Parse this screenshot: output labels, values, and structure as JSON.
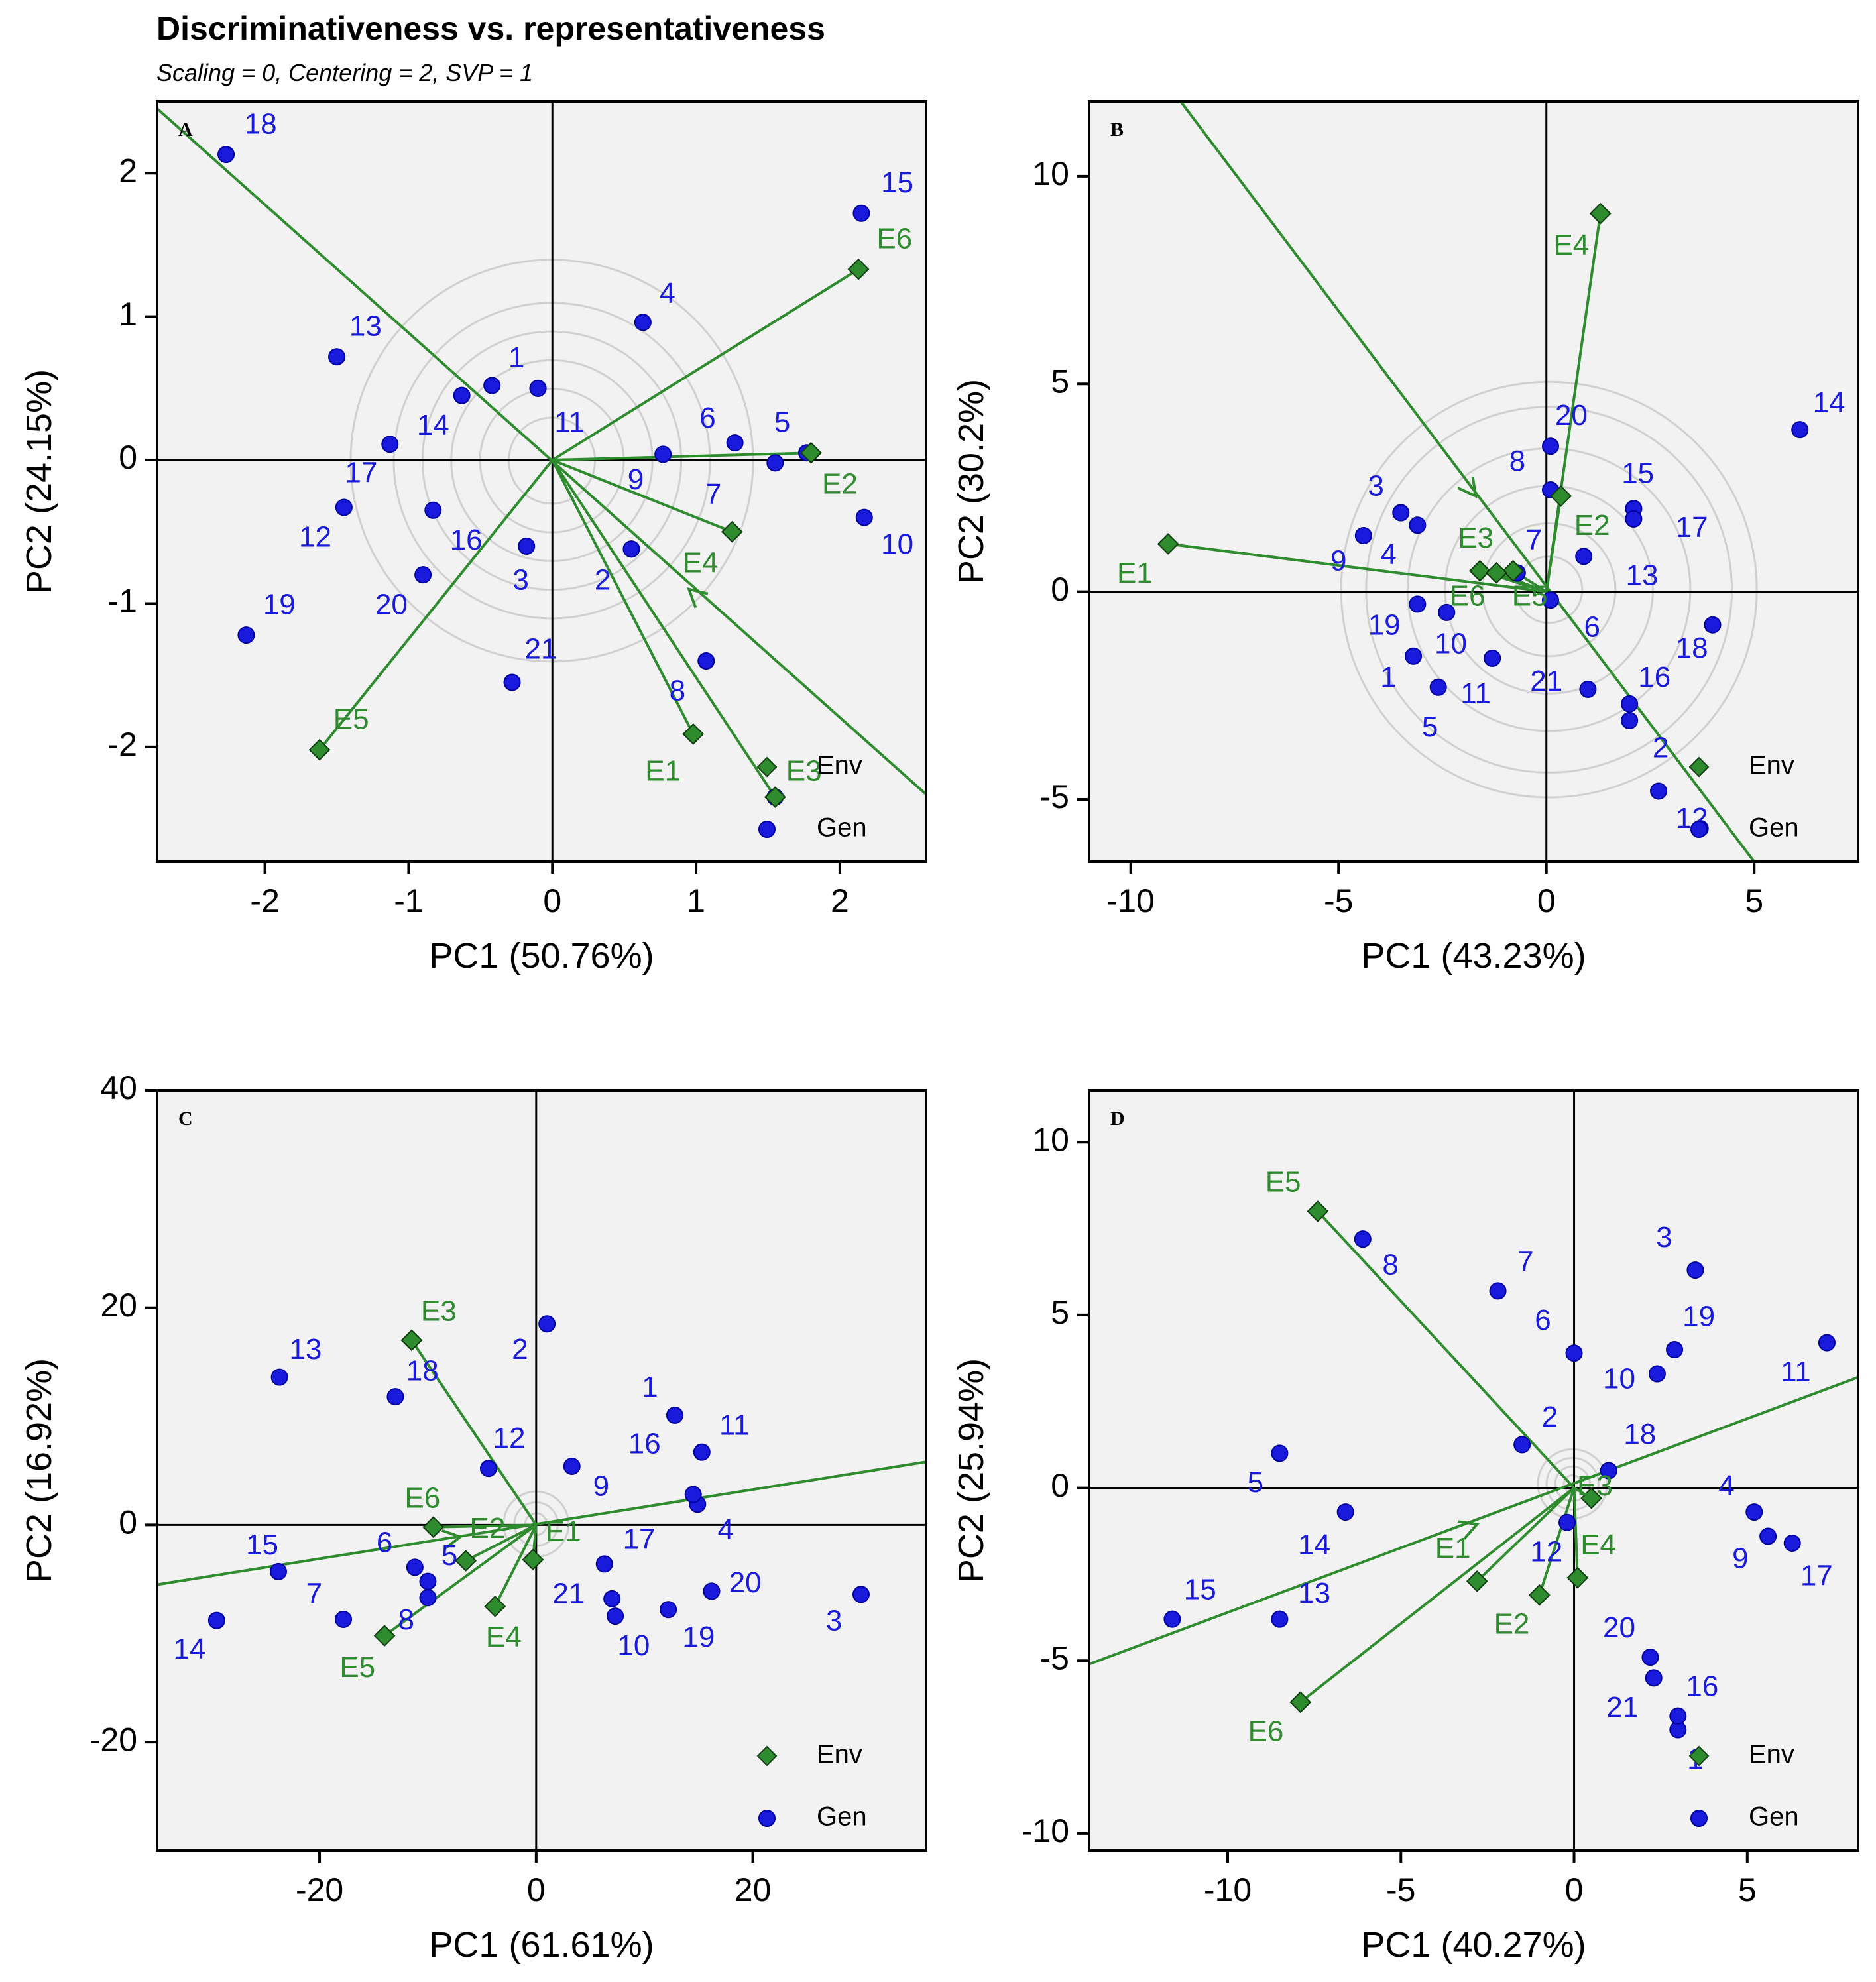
{
  "title": "Discriminativeness vs. representativeness",
  "subtitle": "Scaling = 0, Centering = 2, SVP = 1",
  "colors": {
    "env": "#2e8b2e",
    "env_fill": "#2e8b2e",
    "gen": "#1a1adc",
    "panel_bg": "#f2f2f2",
    "circle": "#d0d0d0"
  },
  "legend": {
    "env": "Env",
    "gen": "Gen"
  },
  "chart_data": [
    {
      "type": "scatter",
      "panel": "A",
      "xlabel": "PC1 (50.76%)",
      "ylabel": "PC2 (24.15%)",
      "xlim": [
        -2.75,
        2.6
      ],
      "ylim": [
        -2.8,
        2.5
      ],
      "xticks": [
        -2,
        -1,
        0,
        1,
        2
      ],
      "yticks": [
        -2,
        -1,
        0,
        1,
        2
      ],
      "circle_radii": [
        0.3,
        0.5,
        0.7,
        0.9,
        1.1,
        1.4
      ],
      "avec": {
        "x1": -2.75,
        "y1": 2.45,
        "x2": 2.6,
        "y2": -2.33
      },
      "avec_arrow": {
        "x": 0.95,
        "y": -0.9
      },
      "genotypes": [
        {
          "label": "1",
          "x": -0.1,
          "y": 0.5,
          "lx": -0.25,
          "ly": 0.7
        },
        {
          "label": "2",
          "x": 0.55,
          "y": -0.62,
          "lx": 0.35,
          "ly": -0.85
        },
        {
          "label": "3",
          "x": -0.18,
          "y": -0.6,
          "lx": -0.22,
          "ly": -0.85
        },
        {
          "label": "4",
          "x": 0.63,
          "y": 0.96,
          "lx": 0.8,
          "ly": 1.15
        },
        {
          "label": "5",
          "x": 1.55,
          "y": -0.02,
          "lx": 1.6,
          "ly": 0.25
        },
        {
          "label": "6",
          "x": 1.27,
          "y": 0.12,
          "lx": 1.08,
          "ly": 0.28
        },
        {
          "label": "7",
          "x": 0.77,
          "y": 0.04,
          "lx": 1.12,
          "ly": -0.25
        },
        {
          "label": "8",
          "x": 1.07,
          "y": -1.4,
          "lx": 0.87,
          "ly": -1.62
        },
        {
          "label": "9",
          "x": 0.55,
          "y": -0.62,
          "lx": 0.58,
          "ly": -0.15
        },
        {
          "label": "10",
          "x": 2.17,
          "y": -0.4,
          "lx": 2.4,
          "ly": -0.6
        },
        {
          "label": "11",
          "x": -0.1,
          "y": 0.5,
          "lx": 0.12,
          "ly": 0.25
        },
        {
          "label": "12",
          "x": -1.45,
          "y": -0.33,
          "lx": -1.65,
          "ly": -0.55
        },
        {
          "label": "13",
          "x": -1.5,
          "y": 0.72,
          "lx": -1.3,
          "ly": 0.92
        },
        {
          "label": "14",
          "x": -1.13,
          "y": 0.11,
          "lx": -0.83,
          "ly": 0.23
        },
        {
          "label": "15",
          "x": 2.15,
          "y": 1.72,
          "lx": 2.4,
          "ly": 1.92
        },
        {
          "label": "16",
          "x": -0.83,
          "y": -0.35,
          "lx": -0.6,
          "ly": -0.57
        },
        {
          "label": "17",
          "x": -0.63,
          "y": 0.45,
          "lx": -1.33,
          "ly": -0.1
        },
        {
          "label": "18",
          "x": -2.27,
          "y": 2.13,
          "lx": -2.03,
          "ly": 2.33
        },
        {
          "label": "19",
          "x": -2.13,
          "y": -1.22,
          "lx": -1.9,
          "ly": -1.02
        },
        {
          "label": "20",
          "x": -0.9,
          "y": -0.8,
          "lx": -1.12,
          "ly": -1.02
        },
        {
          "label": "21",
          "x": -0.28,
          "y": -1.55,
          "lx": -0.08,
          "ly": -1.33
        },
        {
          "label": "",
          "x": -0.42,
          "y": 0.52
        },
        {
          "label": "",
          "x": 1.55,
          "y": -2.35
        },
        {
          "label": "",
          "x": 1.77,
          "y": 0.05
        }
      ],
      "environments": [
        {
          "label": "E1",
          "x": 0.98,
          "y": -1.91,
          "lx": 0.77,
          "ly": -2.18
        },
        {
          "label": "E2",
          "x": 1.8,
          "y": 0.05,
          "lx": 2.0,
          "ly": -0.18
        },
        {
          "label": "E3",
          "x": 1.55,
          "y": -2.35,
          "lx": 1.75,
          "ly": -2.18
        },
        {
          "label": "E4",
          "x": 1.25,
          "y": -0.5,
          "lx": 1.03,
          "ly": -0.73
        },
        {
          "label": "E5",
          "x": -1.62,
          "y": -2.02,
          "lx": -1.4,
          "ly": -1.82
        },
        {
          "label": "E6",
          "x": 2.13,
          "y": 1.33,
          "lx": 2.38,
          "ly": 1.53
        }
      ]
    },
    {
      "type": "scatter",
      "panel": "B",
      "xlabel": "PC1 (43.23%)",
      "ylabel": "PC2 (30.2%)",
      "xlim": [
        -11,
        7.5
      ],
      "ylim": [
        -6.5,
        11.8
      ],
      "xticks": [
        -10,
        -5,
        0,
        5
      ],
      "yticks": [
        -5,
        0,
        5,
        10
      ],
      "circle_radii": [
        0.8,
        1.6,
        2.5,
        3.4,
        4.4,
        5.0
      ],
      "avec": {
        "x1": -8.8,
        "y1": 11.8,
        "x2": 5.0,
        "y2": -6.5
      },
      "avec_arrow": {
        "x": -1.7,
        "y": 2.3
      },
      "genotypes": [
        {
          "label": "1",
          "x": -3.2,
          "y": -1.55,
          "lx": -3.8,
          "ly": -2.1
        },
        {
          "label": "2",
          "x": 2.7,
          "y": -4.8,
          "lx": 2.75,
          "ly": -3.8
        },
        {
          "label": "3",
          "x": -3.5,
          "y": 1.9,
          "lx": -4.1,
          "ly": 2.5
        },
        {
          "label": "4",
          "x": -3.1,
          "y": 1.6,
          "lx": -3.8,
          "ly": 0.85
        },
        {
          "label": "5",
          "x": -2.6,
          "y": -2.3,
          "lx": -2.8,
          "ly": -3.3
        },
        {
          "label": "6",
          "x": 0.1,
          "y": -0.2,
          "lx": 1.1,
          "ly": -0.9
        },
        {
          "label": "7",
          "x": -0.7,
          "y": 0.45,
          "lx": -0.3,
          "ly": 1.2
        },
        {
          "label": "8",
          "x": 0.1,
          "y": 2.45,
          "lx": -0.7,
          "ly": 3.1
        },
        {
          "label": "9",
          "x": -4.4,
          "y": 1.35,
          "lx": -5.0,
          "ly": 0.7
        },
        {
          "label": "10",
          "x": -1.3,
          "y": -1.6,
          "lx": -2.3,
          "ly": -1.3
        },
        {
          "label": "11",
          "x": -2.4,
          "y": -0.5,
          "lx": -1.7,
          "ly": -2.5
        },
        {
          "label": "12",
          "x": 3.7,
          "y": -5.7,
          "lx": 3.5,
          "ly": -5.5
        },
        {
          "label": "13",
          "x": 0.9,
          "y": 0.85,
          "lx": 2.3,
          "ly": 0.35
        },
        {
          "label": "14",
          "x": 6.1,
          "y": 3.9,
          "lx": 6.8,
          "ly": 4.5
        },
        {
          "label": "15",
          "x": 2.1,
          "y": 2.0,
          "lx": 2.2,
          "ly": 2.8
        },
        {
          "label": "16",
          "x": 2.0,
          "y": -2.7,
          "lx": 2.6,
          "ly": -2.1
        },
        {
          "label": "17",
          "x": 2.1,
          "y": 1.75,
          "lx": 3.5,
          "ly": 1.5
        },
        {
          "label": "18",
          "x": 4.0,
          "y": -0.8,
          "lx": 3.5,
          "ly": -1.4
        },
        {
          "label": "19",
          "x": -3.1,
          "y": -0.3,
          "lx": -3.9,
          "ly": -0.85
        },
        {
          "label": "20",
          "x": 0.1,
          "y": 3.5,
          "lx": 0.6,
          "ly": 4.2
        },
        {
          "label": "21",
          "x": 1.0,
          "y": -2.35,
          "lx": 0.0,
          "ly": -2.2
        },
        {
          "label": "",
          "x": 2.0,
          "y": -3.1
        }
      ],
      "environments": [
        {
          "label": "E1",
          "x": -9.1,
          "y": 1.15,
          "lx": -9.9,
          "ly": 0.4
        },
        {
          "label": "E2",
          "x": 0.35,
          "y": 2.3,
          "lx": 1.1,
          "ly": 1.55
        },
        {
          "label": "E3",
          "x": -1.6,
          "y": 0.5,
          "lx": -1.7,
          "ly": 1.25
        },
        {
          "label": "E4",
          "x": 1.3,
          "y": 9.1,
          "lx": 0.6,
          "ly": 8.3
        },
        {
          "label": "E5",
          "x": -0.8,
          "y": 0.5,
          "lx": -0.4,
          "ly": -0.15
        },
        {
          "label": "E6",
          "x": -1.2,
          "y": 0.45,
          "lx": -1.9,
          "ly": -0.15
        }
      ]
    },
    {
      "type": "scatter",
      "panel": "C",
      "xlabel": "PC1 (61.61%)",
      "ylabel": "PC2 (16.92%)",
      "xlim": [
        -35,
        36
      ],
      "ylim": [
        -30,
        40
      ],
      "xticks": [
        -20,
        0,
        20
      ],
      "yticks": [
        -20,
        0,
        20,
        40
      ],
      "circle_radii": [
        1.0,
        2.0,
        3.0
      ],
      "avec": {
        "x1": -35,
        "y1": -5.5,
        "x2": 36,
        "y2": 5.8
      },
      "avec_arrow": {
        "x": -7,
        "y": -1.1
      },
      "genotypes": [
        {
          "label": "1",
          "x": 12.8,
          "y": 10.1,
          "lx": 10.5,
          "ly": 12.5
        },
        {
          "label": "2",
          "x": 1.0,
          "y": 18.5,
          "lx": -1.5,
          "ly": 16.0
        },
        {
          "label": "3",
          "x": 30.0,
          "y": -6.4,
          "lx": 27.5,
          "ly": -9.0
        },
        {
          "label": "4",
          "x": 14.9,
          "y": 1.9,
          "lx": 17.5,
          "ly": -0.6
        },
        {
          "label": "5",
          "x": -10.0,
          "y": -5.2,
          "lx": -8.0,
          "ly": -3.0
        },
        {
          "label": "6",
          "x": -11.2,
          "y": -3.9,
          "lx": -14.0,
          "ly": -1.8
        },
        {
          "label": "7",
          "x": -17.8,
          "y": -8.7,
          "lx": -20.5,
          "ly": -6.5
        },
        {
          "label": "8",
          "x": -10.0,
          "y": -6.7,
          "lx": -12.0,
          "ly": -8.9
        },
        {
          "label": "9",
          "x": 3.3,
          "y": 5.4,
          "lx": 6.0,
          "ly": 3.4
        },
        {
          "label": "10",
          "x": 7.3,
          "y": -8.4,
          "lx": 9.0,
          "ly": -11.3
        },
        {
          "label": "11",
          "x": 15.3,
          "y": 6.7,
          "lx": 18.3,
          "ly": 9.0
        },
        {
          "label": "12",
          "x": -4.4,
          "y": 5.2,
          "lx": -2.5,
          "ly": 7.8
        },
        {
          "label": "13",
          "x": -23.7,
          "y": 13.6,
          "lx": -21.3,
          "ly": 16.0
        },
        {
          "label": "14",
          "x": -29.5,
          "y": -8.8,
          "lx": -32.0,
          "ly": -11.6
        },
        {
          "label": "15",
          "x": -23.8,
          "y": -4.3,
          "lx": -25.3,
          "ly": -2.0
        },
        {
          "label": "16",
          "x": 14.5,
          "y": 2.8,
          "lx": 10.0,
          "ly": 7.3
        },
        {
          "label": "17",
          "x": 6.3,
          "y": -3.6,
          "lx": 9.5,
          "ly": -1.5
        },
        {
          "label": "18",
          "x": -13.0,
          "y": 11.8,
          "lx": -10.5,
          "ly": 14.0
        },
        {
          "label": "19",
          "x": 12.2,
          "y": -7.8,
          "lx": 15.0,
          "ly": -10.5
        },
        {
          "label": "20",
          "x": 16.2,
          "y": -6.1,
          "lx": 19.3,
          "ly": -5.5
        },
        {
          "label": "21",
          "x": 7.0,
          "y": -6.8,
          "lx": 3.0,
          "ly": -6.5
        }
      ],
      "environments": [
        {
          "label": "E1",
          "x": -0.3,
          "y": -3.2,
          "lx": 2.5,
          "ly": -0.8
        },
        {
          "label": "E2",
          "x": -6.5,
          "y": -3.3,
          "lx": -4.5,
          "ly": -0.5
        },
        {
          "label": "E3",
          "x": -11.5,
          "y": 17.0,
          "lx": -9.0,
          "ly": 19.5
        },
        {
          "label": "E4",
          "x": -3.8,
          "y": -7.5,
          "lx": -3.0,
          "ly": -10.5
        },
        {
          "label": "E5",
          "x": -14.0,
          "y": -10.2,
          "lx": -16.5,
          "ly": -13.3
        },
        {
          "label": "E6",
          "x": -9.5,
          "y": -0.2,
          "lx": -10.5,
          "ly": 2.3
        }
      ]
    },
    {
      "type": "scatter",
      "panel": "D",
      "xlabel": "PC1 (40.27%)",
      "ylabel": "PC2 (25.94%)",
      "xlim": [
        -14,
        8.2
      ],
      "ylim": [
        -10.5,
        11.5
      ],
      "xticks": [
        -10,
        -5,
        0,
        5
      ],
      "yticks": [
        -10,
        -5,
        0,
        5,
        10
      ],
      "circle_radii": [
        0.25,
        0.5,
        0.75,
        1.0
      ],
      "avec": {
        "x1": -14,
        "y1": -5.1,
        "x2": 8.2,
        "y2": 3.2
      },
      "avec_arrow": {
        "x": -2.8,
        "y": -1.05
      },
      "genotypes": [
        {
          "label": "1",
          "x": 3.0,
          "y": -7.0,
          "lx": 3.5,
          "ly": -7.9
        },
        {
          "label": "2",
          "x": -1.5,
          "y": 1.25,
          "lx": -0.7,
          "ly": 2.0
        },
        {
          "label": "3",
          "x": 3.5,
          "y": 6.3,
          "lx": 2.6,
          "ly": 7.2
        },
        {
          "label": "4",
          "x": 5.2,
          "y": -0.7,
          "lx": 4.4,
          "ly": 0.0
        },
        {
          "label": "5",
          "x": -8.5,
          "y": 1.0,
          "lx": -9.2,
          "ly": 0.1
        },
        {
          "label": "6",
          "x": 0.0,
          "y": 3.9,
          "lx": -0.9,
          "ly": 4.8
        },
        {
          "label": "7",
          "x": -2.2,
          "y": 5.7,
          "lx": -1.4,
          "ly": 6.5
        },
        {
          "label": "8",
          "x": -6.1,
          "y": 7.2,
          "lx": -5.3,
          "ly": 6.4
        },
        {
          "label": "9",
          "x": 5.6,
          "y": -1.4,
          "lx": 4.8,
          "ly": -2.1
        },
        {
          "label": "10",
          "x": 2.4,
          "y": 3.3,
          "lx": 1.3,
          "ly": 3.1
        },
        {
          "label": "11",
          "x": 7.3,
          "y": 4.2,
          "lx": 6.4,
          "ly": 3.3
        },
        {
          "label": "12",
          "x": -0.2,
          "y": -1.0,
          "lx": -0.8,
          "ly": -1.9
        },
        {
          "label": "13",
          "x": -8.5,
          "y": -3.8,
          "lx": -7.5,
          "ly": -3.1
        },
        {
          "label": "14",
          "x": -6.6,
          "y": -0.7,
          "lx": -7.5,
          "ly": -1.7
        },
        {
          "label": "15",
          "x": -11.6,
          "y": -3.8,
          "lx": -10.8,
          "ly": -3.0
        },
        {
          "label": "16",
          "x": 3.0,
          "y": -6.6,
          "lx": 3.7,
          "ly": -5.8
        },
        {
          "label": "17",
          "x": 6.3,
          "y": -1.6,
          "lx": 7.0,
          "ly": -2.6
        },
        {
          "label": "18",
          "x": 1.0,
          "y": 0.5,
          "lx": 1.9,
          "ly": 1.5
        },
        {
          "label": "19",
          "x": 2.9,
          "y": 4.0,
          "lx": 3.6,
          "ly": 4.9
        },
        {
          "label": "20",
          "x": 2.2,
          "y": -4.9,
          "lx": 1.3,
          "ly": -4.1
        },
        {
          "label": "21",
          "x": 2.3,
          "y": -5.5,
          "lx": 1.4,
          "ly": -6.4
        }
      ],
      "environments": [
        {
          "label": "E1",
          "x": -2.8,
          "y": -2.7,
          "lx": -3.5,
          "ly": -1.8
        },
        {
          "label": "E2",
          "x": -1.0,
          "y": -3.1,
          "lx": -1.8,
          "ly": -4.0
        },
        {
          "label": "E3",
          "x": 0.5,
          "y": -0.3,
          "lx": 0.6,
          "ly": 0.0
        },
        {
          "label": "E4",
          "x": 0.1,
          "y": -2.6,
          "lx": 0.7,
          "ly": -1.7
        },
        {
          "label": "E5",
          "x": -7.4,
          "y": 8.0,
          "lx": -8.4,
          "ly": 8.8
        },
        {
          "label": "E6",
          "x": -7.9,
          "y": -6.2,
          "lx": -8.9,
          "ly": -7.1
        }
      ]
    }
  ]
}
